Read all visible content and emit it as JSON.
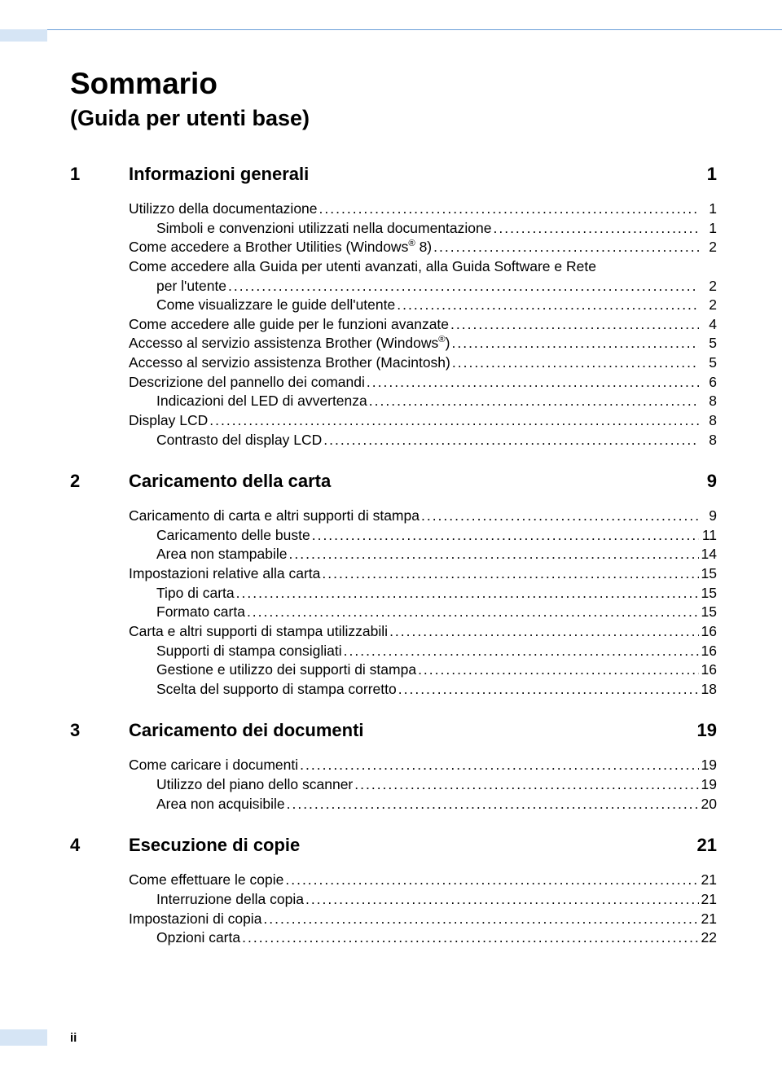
{
  "colors": {
    "accent_border": "#6a9ed8",
    "accent_fill": "#d6e5f5",
    "text": "#000000"
  },
  "title": "Sommario",
  "subtitle": "(Guida per utenti base)",
  "page_roman": "ii",
  "sections": [
    {
      "num": "1",
      "title": "Informazioni generali",
      "page": "1",
      "entries": [
        {
          "level": 1,
          "text": "Utilizzo della documentazione",
          "page": "1"
        },
        {
          "level": 2,
          "text": "Simboli e convenzioni utilizzati nella documentazione",
          "page": "1"
        },
        {
          "level": 1,
          "text": "Come accedere a Brother Utilities (Windows<sup>®</sup> 8)",
          "page": "2"
        },
        {
          "level": 1,
          "text": "Come accedere alla Guida per utenti avanzati, alla Guida Software e Rete per l'utente",
          "page": "2",
          "wrap": true
        },
        {
          "level": 2,
          "text": "Come visualizzare le guide dell'utente",
          "page": "2"
        },
        {
          "level": 1,
          "text": "Come accedere alle guide per le funzioni avanzate",
          "page": "4"
        },
        {
          "level": 1,
          "text": "Accesso al servizio assistenza Brother (Windows<sup>®</sup>)",
          "page": "5"
        },
        {
          "level": 1,
          "text": "Accesso al servizio assistenza Brother (Macintosh)",
          "page": "5"
        },
        {
          "level": 1,
          "text": "Descrizione del pannello dei comandi",
          "page": "6"
        },
        {
          "level": 2,
          "text": "Indicazioni del LED di avvertenza",
          "page": "8"
        },
        {
          "level": 1,
          "text": "Display LCD",
          "page": "8"
        },
        {
          "level": 2,
          "text": "Contrasto del display LCD",
          "page": "8"
        }
      ]
    },
    {
      "num": "2",
      "title": "Caricamento della carta",
      "page": "9",
      "entries": [
        {
          "level": 1,
          "text": "Caricamento di carta e altri supporti di stampa",
          "page": "9"
        },
        {
          "level": 2,
          "text": "Caricamento delle buste",
          "page": "11"
        },
        {
          "level": 2,
          "text": "Area non stampabile",
          "page": "14"
        },
        {
          "level": 1,
          "text": "Impostazioni relative alla carta",
          "page": "15"
        },
        {
          "level": 2,
          "text": "Tipo di carta",
          "page": "15"
        },
        {
          "level": 2,
          "text": "Formato carta",
          "page": "15"
        },
        {
          "level": 1,
          "text": "Carta e altri supporti di stampa utilizzabili",
          "page": "16"
        },
        {
          "level": 2,
          "text": "Supporti di stampa consigliati",
          "page": "16"
        },
        {
          "level": 2,
          "text": "Gestione e utilizzo dei supporti di stampa",
          "page": "16"
        },
        {
          "level": 2,
          "text": "Scelta del supporto di stampa corretto",
          "page": "18"
        }
      ]
    },
    {
      "num": "3",
      "title": "Caricamento dei documenti",
      "page": "19",
      "entries": [
        {
          "level": 1,
          "text": "Come caricare i documenti",
          "page": "19"
        },
        {
          "level": 2,
          "text": "Utilizzo del piano dello scanner",
          "page": "19"
        },
        {
          "level": 2,
          "text": "Area non acquisibile",
          "page": "20"
        }
      ]
    },
    {
      "num": "4",
      "title": "Esecuzione di copie",
      "page": "21",
      "entries": [
        {
          "level": 1,
          "text": "Come effettuare le copie",
          "page": "21"
        },
        {
          "level": 2,
          "text": "Interruzione della copia",
          "page": "21"
        },
        {
          "level": 1,
          "text": "Impostazioni di copia",
          "page": "21"
        },
        {
          "level": 2,
          "text": "Opzioni carta",
          "page": "22"
        }
      ]
    }
  ]
}
